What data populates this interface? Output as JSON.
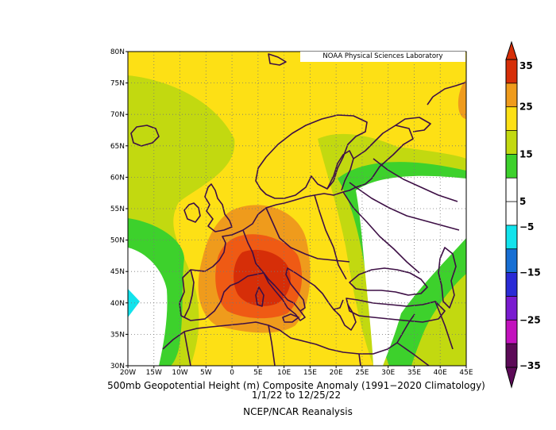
{
  "credit": "NOAA Physical Sciences Laboratory",
  "title_line1": "500mb Geopotential Height (m) Composite Anomaly (1991−2020 Climatology)",
  "title_line2": "1/1/22  to 12/25/22",
  "title_line3": "NCEP/NCAR Reanalysis",
  "lat_ticks": [
    {
      "label": "80N",
      "lat": 80
    },
    {
      "label": "75N",
      "lat": 75
    },
    {
      "label": "70N",
      "lat": 70
    },
    {
      "label": "65N",
      "lat": 65
    },
    {
      "label": "60N",
      "lat": 60
    },
    {
      "label": "55N",
      "lat": 55
    },
    {
      "label": "50N",
      "lat": 50
    },
    {
      "label": "45N",
      "lat": 45
    },
    {
      "label": "40N",
      "lat": 40
    },
    {
      "label": "35N",
      "lat": 35
    },
    {
      "label": "30N",
      "lat": 30
    }
  ],
  "lon_ticks": [
    {
      "label": "20W",
      "lon": -20
    },
    {
      "label": "15W",
      "lon": -15
    },
    {
      "label": "10W",
      "lon": -10
    },
    {
      "label": "5W",
      "lon": -5
    },
    {
      "label": "0",
      "lon": 0
    },
    {
      "label": "5E",
      "lon": 5
    },
    {
      "label": "10E",
      "lon": 10
    },
    {
      "label": "15E",
      "lon": 15
    },
    {
      "label": "20E",
      "lon": 20
    },
    {
      "label": "25E",
      "lon": 25
    },
    {
      "label": "30E",
      "lon": 30
    },
    {
      "label": "35E",
      "lon": 35
    },
    {
      "label": "40E",
      "lon": 40
    },
    {
      "label": "45E",
      "lon": 45
    }
  ],
  "colorbar": {
    "labels": [
      "35",
      "25",
      "15",
      "5",
      "−5",
      "−15",
      "−25",
      "−35"
    ],
    "colors": [
      "#d62e08",
      "#ef9b1c",
      "#fde015",
      "#c2d910",
      "#3dd12c",
      "#ffffff",
      "#ffffff",
      "#12e3ec",
      "#176fd4",
      "#2a2bd6",
      "#7a1bd0",
      "#c212bd",
      "#5c0a57"
    ]
  },
  "colors": {
    "yellow": "#fde015",
    "lime": "#c2d910",
    "green": "#3dd12c",
    "orange": "#ef9b1c",
    "red_orange": "#ef5a14",
    "red": "#d62e08",
    "cyan": "#12e3ec",
    "coast": "#3d0f45"
  }
}
